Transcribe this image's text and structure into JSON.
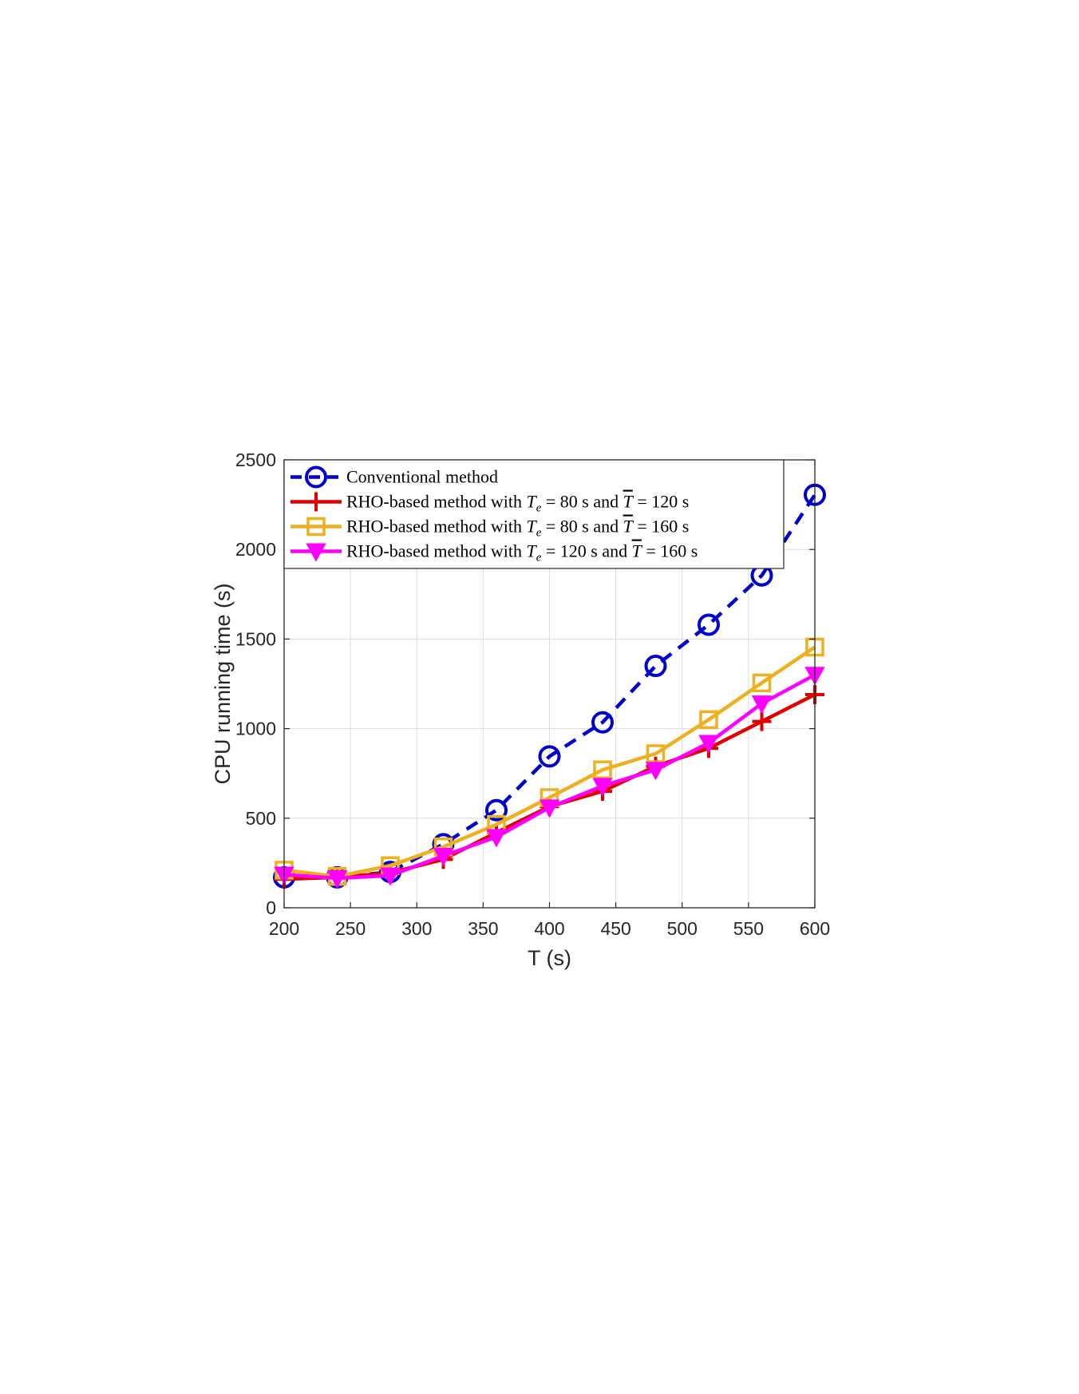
{
  "chart_data": {
    "type": "line",
    "xlabel": "T (s)",
    "ylabel": "CPU running time (s)",
    "xlim": [
      200,
      600
    ],
    "ylim": [
      0,
      2500
    ],
    "xticks": [
      200,
      250,
      300,
      350,
      400,
      450,
      500,
      550,
      600
    ],
    "yticks": [
      0,
      500,
      1000,
      1500,
      2000,
      2500
    ],
    "grid": true,
    "legend_position": "top-left",
    "x": [
      200,
      240,
      280,
      320,
      360,
      400,
      440,
      480,
      520,
      560,
      600
    ],
    "series": [
      {
        "name": "Conventional method",
        "legend_prefix": "Conventional method",
        "te": "",
        "tbar": "",
        "color": "#0000cc",
        "line_style": "dashed",
        "marker": "circle",
        "values": [
          170,
          170,
          200,
          355,
          545,
          845,
          1035,
          1350,
          1580,
          1855,
          2305
        ]
      },
      {
        "name": "RHO-based method with Te = 80 s and T̄ = 120 s",
        "legend_prefix": "RHO-based method with ",
        "te": "80",
        "tbar": "120",
        "color": "#e00000",
        "line_style": "solid",
        "marker": "plus",
        "values": [
          160,
          170,
          195,
          270,
          420,
          565,
          650,
          790,
          890,
          1040,
          1190
        ]
      },
      {
        "name": "RHO-based method with Te = 80 s and T̄ = 160 s",
        "legend_prefix": "RHO-based method with ",
        "te": "80",
        "tbar": "160",
        "color": "#edb120",
        "line_style": "solid",
        "marker": "square",
        "values": [
          210,
          175,
          235,
          340,
          465,
          615,
          770,
          860,
          1050,
          1255,
          1455
        ]
      },
      {
        "name": "RHO-based method with Te = 120 s and T̄ = 160 s",
        "legend_prefix": "RHO-based method with ",
        "te": "120",
        "tbar": "160",
        "color": "#ff00ff",
        "line_style": "solid",
        "marker": "triangle-down",
        "values": [
          185,
          165,
          180,
          290,
          395,
          560,
          680,
          770,
          920,
          1140,
          1300
        ]
      }
    ]
  }
}
